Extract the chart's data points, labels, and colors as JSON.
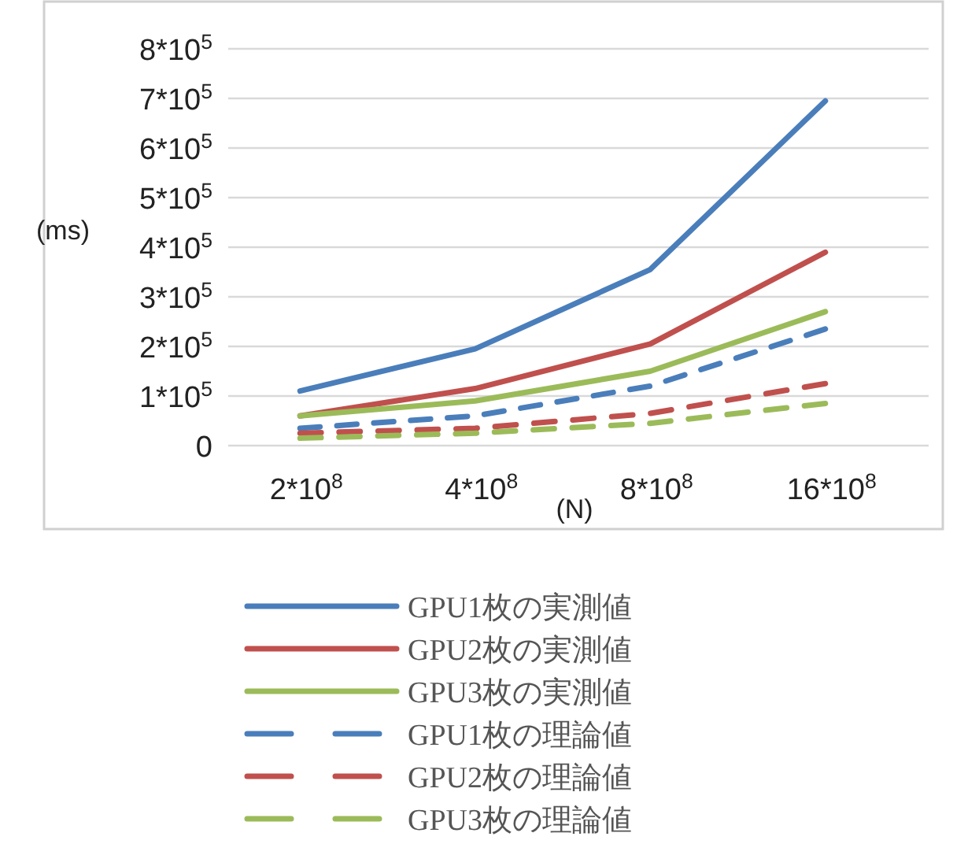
{
  "chart_data": {
    "type": "line",
    "xlabel": "(N)",
    "ylabel": "(ms)",
    "categories": [
      "2*10$^{8}$",
      "4*10$^{8}$",
      "8*10$^{8}$",
      "16*10$^{8}$"
    ],
    "ylim": [
      0,
      800000
    ],
    "yticks": [
      0,
      {
        "value": 100000,
        "label": "1*10$^{5}$"
      },
      {
        "value": 200000,
        "label": "2*10$^{5}$"
      },
      {
        "value": 300000,
        "label": "3*10$^{5}$"
      },
      {
        "value": 400000,
        "label": "4*10$^{5}$"
      },
      {
        "value": 500000,
        "label": "5*10$^{5}$"
      },
      {
        "value": 600000,
        "label": "6*10$^{5}$"
      },
      {
        "value": 700000,
        "label": "7*10$^{5}$"
      },
      {
        "value": 800000,
        "label": "8*10$^{5}$"
      }
    ],
    "grid": "y",
    "legend": "bottom",
    "marker": "none",
    "series": [
      {
        "name": "GPU1枚の実測値",
        "color": "#4a7ebb",
        "line_style": "solid",
        "values": [
          110000,
          195000,
          355000,
          695000
        ]
      },
      {
        "name": "GPU2枚の実測値",
        "color": "#c0504d",
        "line_style": "solid",
        "values": [
          60000,
          115000,
          205000,
          390000
        ]
      },
      {
        "name": "GPU3枚の実測値",
        "color": "#9bbb59",
        "line_style": "solid",
        "values": [
          60000,
          90000,
          150000,
          270000
        ]
      },
      {
        "name": "GPU1枚の理論値",
        "color": "#4a7ebb",
        "line_style": "dashed",
        "values": [
          35000,
          60000,
          120000,
          235000
        ]
      },
      {
        "name": "GPU2枚の理論値",
        "color": "#c0504d",
        "line_style": "dashed",
        "values": [
          25000,
          35000,
          65000,
          125000
        ]
      },
      {
        "name": "GPU3枚の理論値",
        "color": "#9bbb59",
        "line_style": "dashed",
        "values": [
          15000,
          25000,
          45000,
          85000
        ]
      }
    ]
  }
}
